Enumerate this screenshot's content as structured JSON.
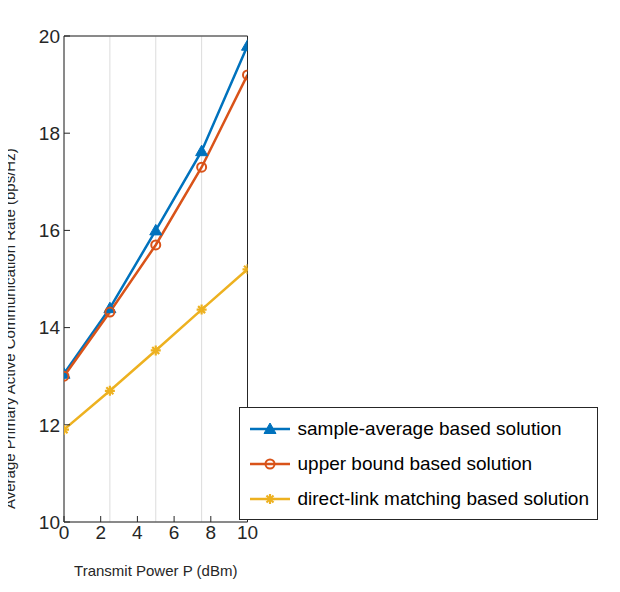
{
  "chart_data": {
    "type": "line",
    "x_label": "Transmit Power P (dBm)",
    "y_label": "Average Primary Active Communication Rate (bps/Hz)",
    "x": [
      0,
      2.5,
      5,
      7.5,
      10
    ],
    "series": [
      {
        "name": "sample-average based solution",
        "color": "#0072BD",
        "marker": "triangle",
        "values": [
          13.05,
          14.4,
          16.0,
          17.63,
          19.8
        ]
      },
      {
        "name": "upper bound based solution",
        "color": "#D95319",
        "marker": "circle",
        "values": [
          13.0,
          14.32,
          15.7,
          17.3,
          19.2
        ]
      },
      {
        "name": "direct-link matching based solution",
        "color": "#EDB120",
        "marker": "asterisk",
        "values": [
          11.9,
          12.7,
          13.53,
          14.37,
          15.2
        ]
      }
    ],
    "xlim": [
      0,
      10
    ],
    "xticks": [
      0,
      2,
      4,
      6,
      8,
      10
    ],
    "ylim": [
      10,
      20
    ],
    "yticks": [
      10,
      12,
      14,
      16,
      18,
      20
    ],
    "grid": true,
    "legend": "lower right"
  }
}
